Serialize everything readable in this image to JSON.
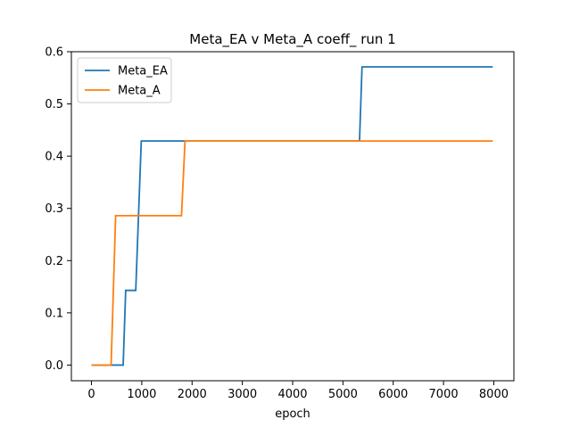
{
  "chart_data": {
    "type": "line",
    "title": "Meta_EA v Meta_A coeff_ run 1",
    "xlabel": "epoch",
    "ylabel": "",
    "xlim": [
      -400,
      8400
    ],
    "ylim": [
      -0.03,
      0.6
    ],
    "xticks": [
      0,
      1000,
      2000,
      3000,
      4000,
      5000,
      6000,
      7000,
      8000
    ],
    "xtick_labels": [
      "0",
      "1000",
      "2000",
      "3000",
      "4000",
      "5000",
      "6000",
      "7000",
      "8000"
    ],
    "yticks": [
      0.0,
      0.1,
      0.2,
      0.3,
      0.4,
      0.5,
      0.6
    ],
    "ytick_labels": [
      "0.0",
      "0.1",
      "0.2",
      "0.3",
      "0.4",
      "0.5",
      "0.6"
    ],
    "grid": false,
    "legend_position": "top-left",
    "series": [
      {
        "name": "Meta_EA",
        "color": "#1f77b4",
        "x": [
          0,
          630,
          680,
          880,
          990,
          1040,
          5330,
          5380,
          7980
        ],
        "y": [
          0.0,
          0.0,
          0.143,
          0.143,
          0.429,
          0.429,
          0.429,
          0.571,
          0.571
        ]
      },
      {
        "name": "Meta_A",
        "color": "#ff7f0e",
        "x": [
          0,
          390,
          480,
          1790,
          1860,
          7980
        ],
        "y": [
          0.0,
          0.0,
          0.286,
          0.286,
          0.429,
          0.429
        ]
      }
    ]
  }
}
